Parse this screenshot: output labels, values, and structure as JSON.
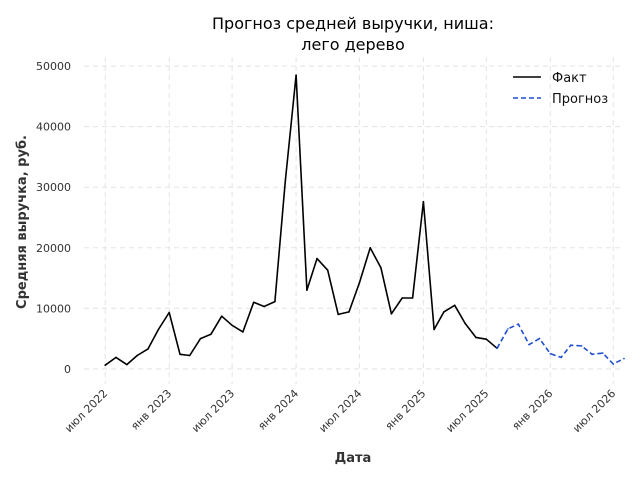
{
  "chart_data": {
    "type": "line",
    "title_lines": [
      "Прогноз средней выручки, ниша:",
      "лего дерево"
    ],
    "xlabel": "Дата",
    "ylabel": "Средняя выручка, руб.",
    "ylim": [
      -2500,
      51500
    ],
    "xlim": [
      "2022-05-01",
      "2026-08-01"
    ],
    "y_ticks": [
      0,
      10000,
      20000,
      30000,
      40000,
      50000
    ],
    "y_tick_labels": [
      "0",
      "10000",
      "20000",
      "30000",
      "40000",
      "50000"
    ],
    "x_ticks": [
      "2022-07-01",
      "2023-01-01",
      "2023-07-01",
      "2024-01-01",
      "2024-07-01",
      "2025-01-01",
      "2025-07-01",
      "2026-01-01",
      "2026-07-01"
    ],
    "x_tick_labels": [
      "июл 2022",
      "янв 2023",
      "июл 2023",
      "янв 2024",
      "июл 2024",
      "янв 2025",
      "июл 2025",
      "янв 2026",
      "июл 2026"
    ],
    "grid": true,
    "legend_position": "top-right",
    "series": [
      {
        "name": "Факт",
        "color": "#000000",
        "style": "solid",
        "points": [
          [
            "2022-07-01",
            600
          ],
          [
            "2022-08-01",
            1900
          ],
          [
            "2022-09-01",
            700
          ],
          [
            "2022-10-01",
            2200
          ],
          [
            "2022-11-01",
            3300
          ],
          [
            "2022-12-01",
            6500
          ],
          [
            "2023-01-01",
            9300
          ],
          [
            "2023-02-01",
            2400
          ],
          [
            "2023-03-01",
            2200
          ],
          [
            "2023-04-01",
            5000
          ],
          [
            "2023-05-01",
            5700
          ],
          [
            "2023-06-01",
            8700
          ],
          [
            "2023-07-01",
            7200
          ],
          [
            "2023-08-01",
            6100
          ],
          [
            "2023-09-01",
            11000
          ],
          [
            "2023-10-01",
            10300
          ],
          [
            "2023-11-01",
            11100
          ],
          [
            "2023-12-01",
            31000
          ],
          [
            "2024-01-01",
            48500
          ],
          [
            "2024-02-01",
            13000
          ],
          [
            "2024-03-01",
            18200
          ],
          [
            "2024-04-01",
            16300
          ],
          [
            "2024-05-01",
            9000
          ],
          [
            "2024-06-01",
            9400
          ],
          [
            "2024-07-01",
            14200
          ],
          [
            "2024-08-01",
            20000
          ],
          [
            "2024-09-01",
            16700
          ],
          [
            "2024-10-01",
            9100
          ],
          [
            "2024-11-01",
            11700
          ],
          [
            "2024-12-01",
            11700
          ],
          [
            "2025-01-01",
            27600
          ],
          [
            "2025-02-01",
            6500
          ],
          [
            "2025-03-01",
            9400
          ],
          [
            "2025-04-01",
            10500
          ],
          [
            "2025-05-01",
            7500
          ],
          [
            "2025-06-01",
            5200
          ],
          [
            "2025-07-01",
            4900
          ],
          [
            "2025-08-01",
            3400
          ]
        ]
      },
      {
        "name": "Прогноз",
        "color": "#1f4fd1",
        "style": "dashed",
        "points": [
          [
            "2025-08-01",
            3400
          ],
          [
            "2025-09-01",
            6600
          ],
          [
            "2025-10-01",
            7400
          ],
          [
            "2025-11-01",
            4000
          ],
          [
            "2025-12-01",
            5000
          ],
          [
            "2026-01-01",
            2500
          ],
          [
            "2026-02-01",
            1900
          ],
          [
            "2026-03-01",
            3900
          ],
          [
            "2026-04-01",
            3800
          ],
          [
            "2026-05-01",
            2400
          ],
          [
            "2026-06-01",
            2600
          ],
          [
            "2026-07-01",
            800
          ],
          [
            "2026-08-01",
            1700
          ]
        ]
      }
    ]
  }
}
